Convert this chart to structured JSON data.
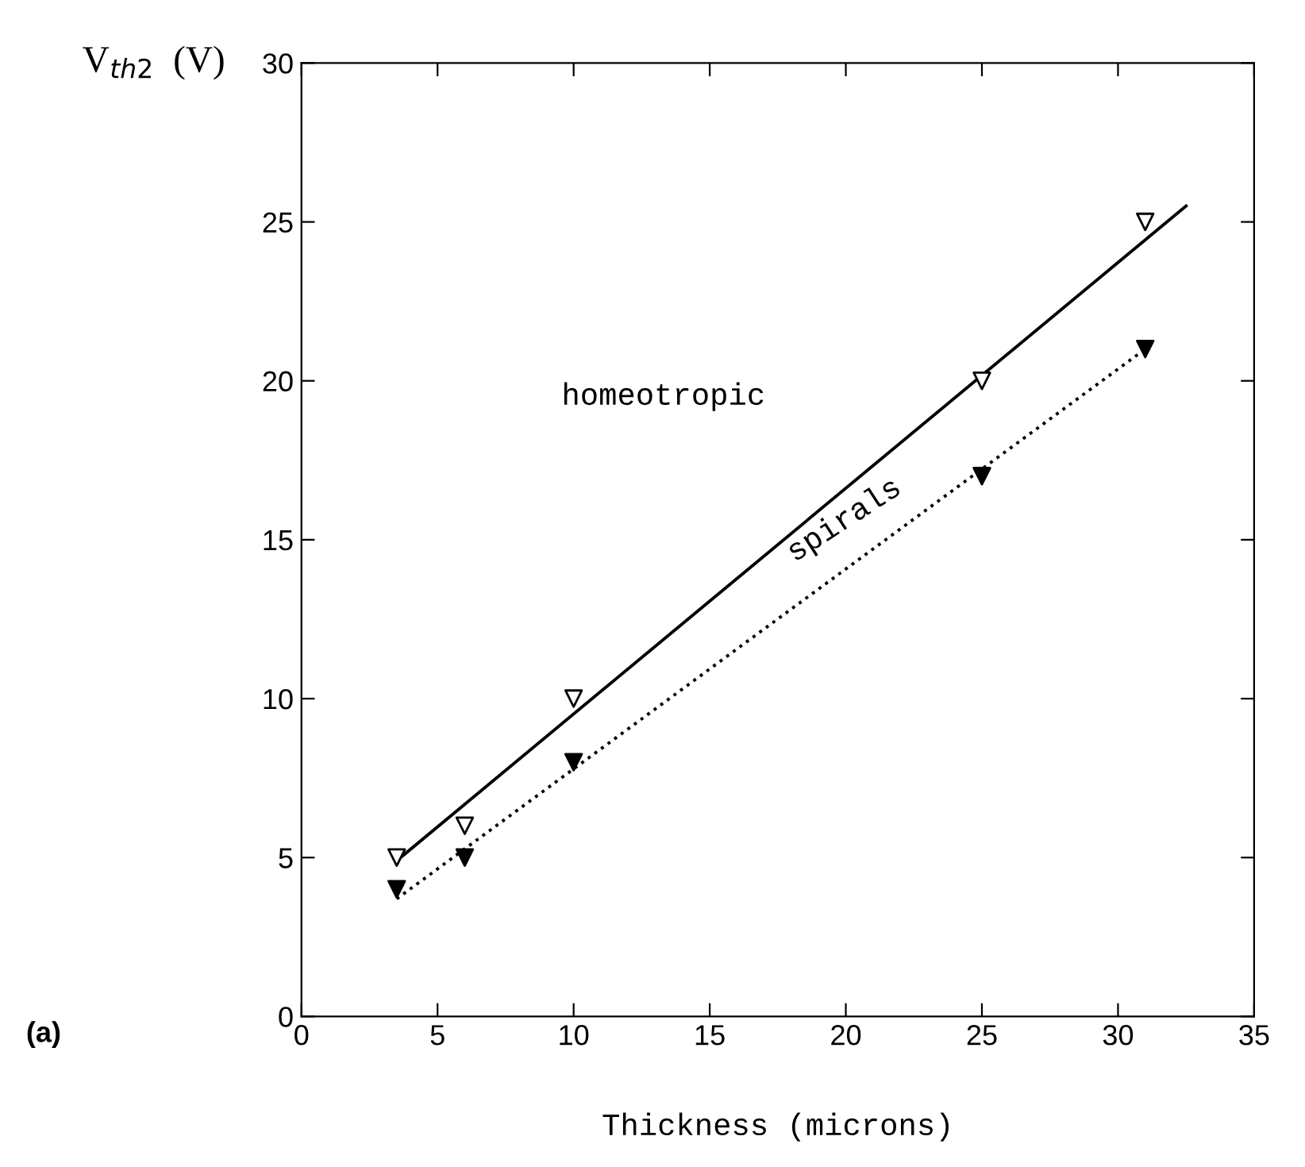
{
  "chart_data": {
    "type": "scatter",
    "xlabel": "Thickness (microns)",
    "ylabel": "V$_{th2}$  (V)",
    "xlim": [
      0,
      35
    ],
    "ylim": [
      0,
      30
    ],
    "xticks": [
      0,
      5,
      10,
      15,
      20,
      25,
      30,
      35
    ],
    "yticks": [
      0,
      5,
      10,
      15,
      20,
      25,
      30
    ],
    "grid": false,
    "legend": false,
    "series": [
      {
        "color": "#ffffff",
        "marker": "triangle",
        "x": [
          3.5,
          6,
          10,
          25,
          31
        ],
        "values": [
          5,
          6,
          10,
          20,
          25
        ]
      },
      {
        "color": "#000000",
        "marker": "triangle",
        "x": [
          3.5,
          6,
          10,
          25,
          31
        ],
        "values": [
          4,
          5,
          8,
          17,
          21
        ]
      },
      {
        "type": "line",
        "color": "#000000",
        "line_style": "solid",
        "x": [
          3.5,
          32.5
        ],
        "values": [
          4.9,
          25.5
        ]
      },
      {
        "type": "line",
        "color": "#000000",
        "line_style": "dotted",
        "x": [
          3.5,
          31
        ],
        "values": [
          3.7,
          21
        ]
      }
    ],
    "annotations": [
      "homeotropic",
      "spirals",
      "(a)"
    ]
  }
}
